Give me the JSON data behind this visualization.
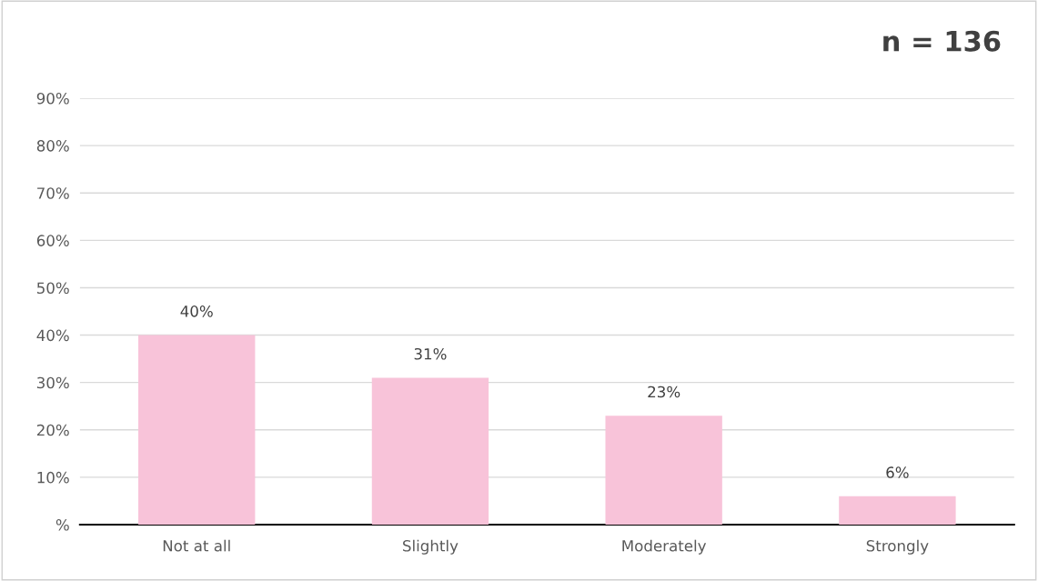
{
  "chart_data": {
    "type": "bar",
    "categories": [
      "Not at all",
      "Slightly",
      "Moderately",
      "Strongly"
    ],
    "values": [
      40,
      31,
      23,
      6
    ],
    "value_labels": [
      "40%",
      "31%",
      "23%",
      "6%"
    ],
    "color": "#f8c3d9",
    "ylim": [
      0,
      90
    ],
    "yticks": [
      {
        "value": 0,
        "label": "%"
      },
      {
        "value": 10,
        "label": "10%"
      },
      {
        "value": 20,
        "label": "20%"
      },
      {
        "value": 30,
        "label": "30%"
      },
      {
        "value": 40,
        "label": "40%"
      },
      {
        "value": 50,
        "label": "50%"
      },
      {
        "value": 60,
        "label": "60%"
      },
      {
        "value": 70,
        "label": "70%"
      },
      {
        "value": 80,
        "label": "80%"
      },
      {
        "value": 90,
        "label": "90%"
      }
    ],
    "grid": "y",
    "legend": false,
    "annotations": [
      "n = 136"
    ]
  }
}
